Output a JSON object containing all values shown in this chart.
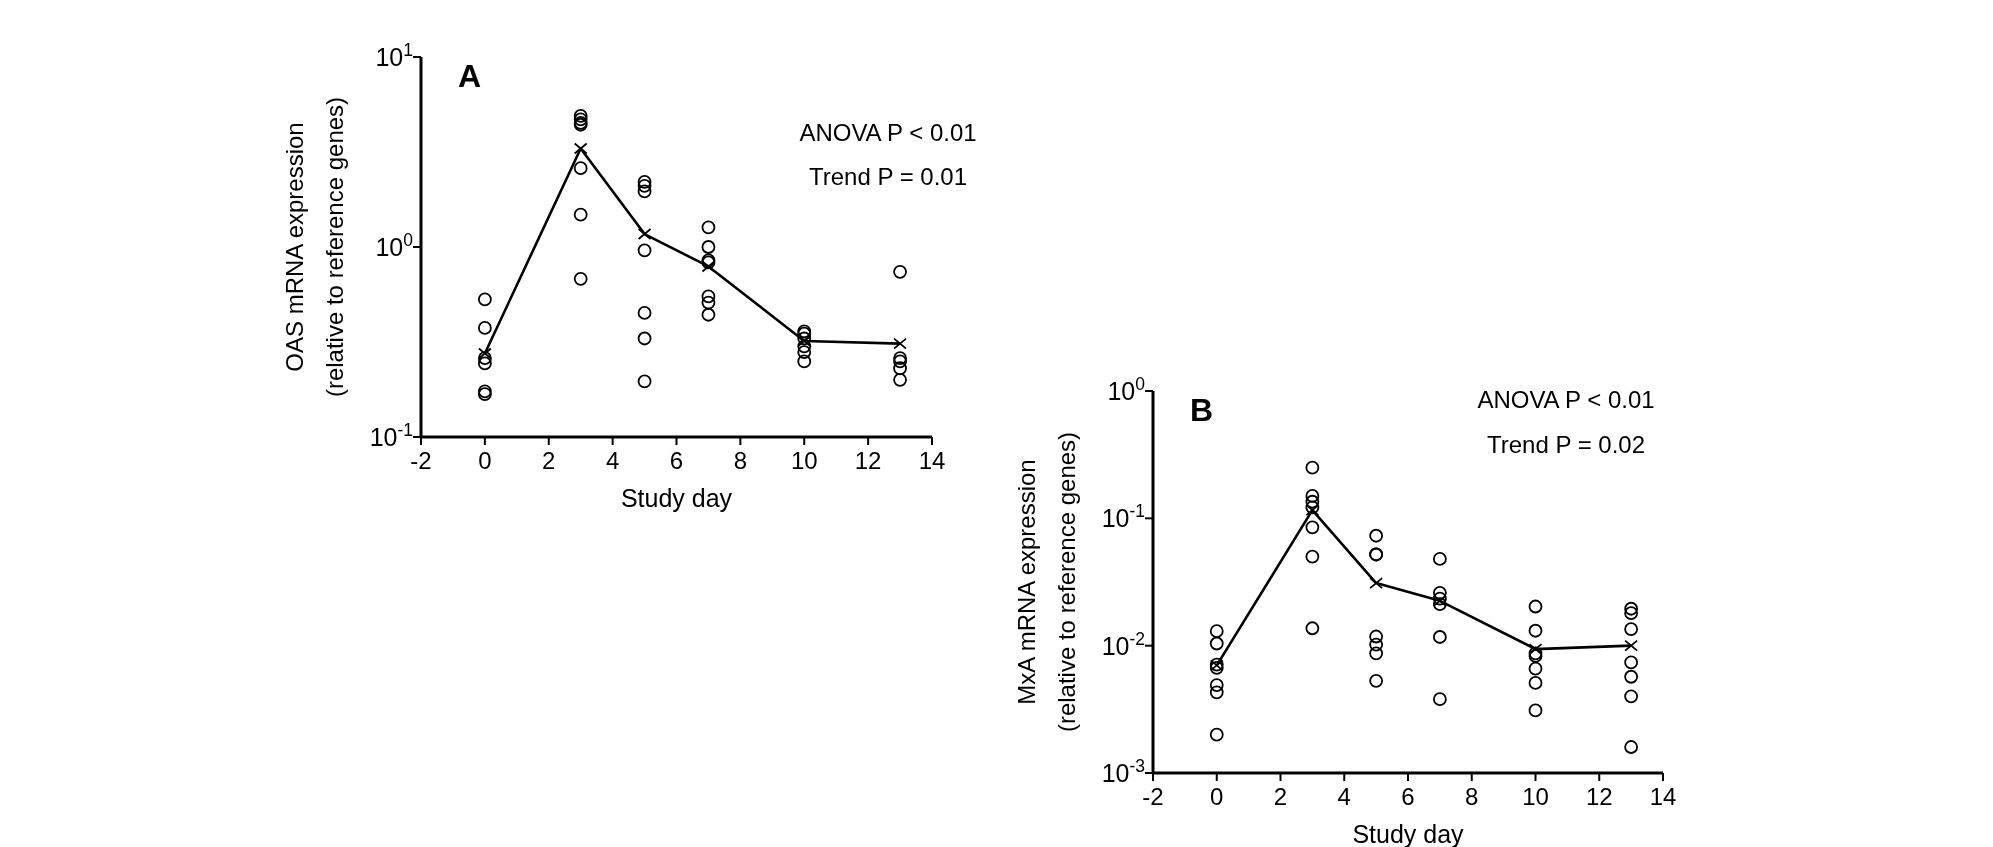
{
  "chart_data": [
    {
      "type": "scatter",
      "title": "A",
      "xlabel": "Study day",
      "ylabel": "OAS mRNA expression\n(relative to reference genes)",
      "log": "y",
      "xlim": [
        -2,
        14
      ],
      "xticks": [
        -2,
        0,
        2,
        4,
        6,
        8,
        10,
        12,
        14
      ],
      "ylim": [
        0.1,
        10
      ],
      "yticks": [
        {
          "value": 0.1,
          "label": "10$^{-1}$"
        },
        {
          "value": 1,
          "label": "10$^{0}$"
        },
        {
          "value": 10,
          "label": "10$^{1}$"
        }
      ],
      "grid": false,
      "annotations": [
        "ANOVA P < 0.01",
        "Trend P = 0.01"
      ],
      "series": [
        {
          "marker": "circle",
          "color": "#000000",
          "x": [
            0,
            0,
            0,
            0,
            0,
            0,
            3,
            3,
            3,
            3,
            3,
            3,
            3,
            5,
            5,
            5,
            5,
            5,
            5,
            5,
            7,
            7,
            7,
            7,
            7,
            7,
            7,
            10,
            10,
            10,
            10,
            10,
            10,
            13,
            13,
            13,
            13,
            13
          ],
          "values": [
            0.53,
            0.375,
            0.26,
            0.244,
            0.174,
            0.168,
            4.9,
            4.7,
            4.5,
            4.4,
            2.6,
            1.48,
            0.68,
            2.2,
            2.1,
            1.96,
            0.96,
            0.45,
            0.33,
            0.196,
            1.27,
            1.0,
            0.85,
            0.83,
            0.55,
            0.51,
            0.44,
            0.36,
            0.35,
            0.33,
            0.3,
            0.28,
            0.25,
            0.74,
            0.26,
            0.25,
            0.23,
            0.2
          ]
        },
        {
          "type": "line",
          "marker": "cross",
          "color": "#000000",
          "x": [
            0,
            3,
            5,
            7,
            10,
            13
          ],
          "values": [
            0.275,
            3.3,
            1.17,
            0.79,
            0.32,
            0.31
          ]
        }
      ]
    },
    {
      "type": "scatter",
      "title": "B",
      "xlabel": "Study day",
      "ylabel": "MxA mRNA expression\n(relative to reference genes)",
      "log": "y",
      "xlim": [
        -2,
        14
      ],
      "xticks": [
        -2,
        0,
        2,
        4,
        6,
        8,
        10,
        12,
        14
      ],
      "ylim": [
        0.001,
        1
      ],
      "yticks": [
        {
          "value": 0.001,
          "label": "10$^{-3}$"
        },
        {
          "value": 0.01,
          "label": "10$^{-2}$"
        },
        {
          "value": 0.1,
          "label": "10$^{-1}$"
        },
        {
          "value": 1,
          "label": "10$^{0}$"
        }
      ],
      "grid": false,
      "annotations": [
        "ANOVA P < 0.01",
        "Trend P = 0.02"
      ],
      "series": [
        {
          "marker": "circle",
          "color": "#000000",
          "x": [
            0,
            0,
            0,
            0,
            0,
            0,
            0,
            3,
            3,
            3,
            3,
            3,
            3,
            3,
            5,
            5,
            5,
            5,
            5,
            5,
            5,
            7,
            7,
            7,
            7,
            7,
            7,
            10,
            10,
            10,
            10,
            10,
            10,
            10,
            13,
            13,
            13,
            13,
            13,
            13,
            13
          ],
          "values": [
            0.013,
            0.0104,
            0.0071,
            0.0067,
            0.0049,
            0.0043,
            0.002,
            0.25,
            0.15,
            0.135,
            0.122,
            0.085,
            0.05,
            0.0137,
            0.073,
            0.052,
            0.052,
            0.0118,
            0.0102,
            0.0087,
            0.0053,
            0.048,
            0.026,
            0.0234,
            0.0212,
            0.0117,
            0.0038,
            0.0203,
            0.0131,
            0.0087,
            0.0083,
            0.0066,
            0.0051,
            0.0031,
            0.0195,
            0.018,
            0.0135,
            0.0074,
            0.0057,
            0.004,
            0.0016
          ]
        },
        {
          "type": "line",
          "marker": "cross",
          "color": "#000000",
          "x": [
            0,
            3,
            5,
            7,
            10,
            13
          ],
          "values": [
            0.007,
            0.116,
            0.031,
            0.0225,
            0.0094,
            0.01
          ]
        }
      ]
    }
  ]
}
